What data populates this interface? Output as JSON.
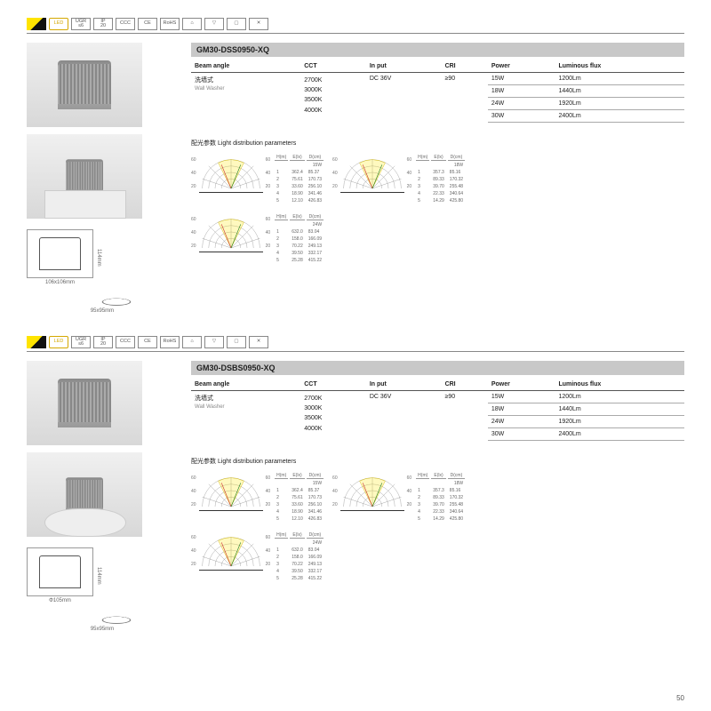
{
  "page_number": "50",
  "certs": [
    "LED",
    "UGR\n≤6",
    "IP\n20",
    "CCC",
    "CE",
    "RoHS",
    "⌂",
    "▽",
    "▢",
    "✕"
  ],
  "products": [
    {
      "model": "GM30-DSS0950-XQ",
      "shape": "sq",
      "dim_w": "106x106mm",
      "dim_h": "114mm",
      "cutout": "95x95mm",
      "beam_cn": "洗墙式",
      "beam_en": "Wall Washer",
      "cct": "2700K\n3000K\n3500K\n4000K",
      "input": "DC 36V",
      "cri": "≥90",
      "rows": [
        {
          "power": "15W",
          "lm": "1200Lm"
        },
        {
          "power": "18W",
          "lm": "1440Lm"
        },
        {
          "power": "24W",
          "lm": "1920Lm"
        },
        {
          "power": "30W",
          "lm": "2400Lm"
        }
      ],
      "ldp_label": "配光参数 Light distribution parameters",
      "polars": [
        {
          "w": "15W",
          "rows": [
            [
              "1",
              "362.4",
              "85.37"
            ],
            [
              "2",
              "75.61",
              "170.73"
            ],
            [
              "3",
              "33.60",
              "256.10"
            ],
            [
              "4",
              "18.90",
              "341.46"
            ],
            [
              "5",
              "12.10",
              "426.83"
            ]
          ]
        },
        {
          "w": "18W",
          "rows": [
            [
              "1",
              "357.3",
              "85.16"
            ],
            [
              "2",
              "89.33",
              "170.32"
            ],
            [
              "3",
              "39.70",
              "255.48"
            ],
            [
              "4",
              "22.33",
              "340.64"
            ],
            [
              "5",
              "14.29",
              "425.80"
            ]
          ]
        },
        {
          "w": "24W",
          "rows": [
            [
              "1",
              "632.0",
              "83.04"
            ],
            [
              "2",
              "158.0",
              "166.09"
            ],
            [
              "3",
              "70.22",
              "249.13"
            ],
            [
              "4",
              "39.50",
              "332.17"
            ],
            [
              "5",
              "25.28",
              "415.22"
            ]
          ]
        }
      ]
    },
    {
      "model": "GM30-DSBS0950-XQ",
      "shape": "rd",
      "dim_w": "Φ105mm",
      "dim_h": "114mm",
      "cutout": "95x95mm",
      "beam_cn": "洗墙式",
      "beam_en": "Wall Washer",
      "cct": "2700K\n3000K\n3500K\n4000K",
      "input": "DC 36V",
      "cri": "≥90",
      "rows": [
        {
          "power": "15W",
          "lm": "1200Lm"
        },
        {
          "power": "18W",
          "lm": "1440Lm"
        },
        {
          "power": "24W",
          "lm": "1920Lm"
        },
        {
          "power": "30W",
          "lm": "2400Lm"
        }
      ],
      "ldp_label": "配光参数 Light distribution parameters",
      "polars": [
        {
          "w": "15W",
          "rows": [
            [
              "1",
              "362.4",
              "85.37"
            ],
            [
              "2",
              "75.61",
              "170.73"
            ],
            [
              "3",
              "33.60",
              "256.10"
            ],
            [
              "4",
              "18.90",
              "341.46"
            ],
            [
              "5",
              "12.10",
              "426.83"
            ]
          ]
        },
        {
          "w": "18W",
          "rows": [
            [
              "1",
              "357.3",
              "85.16"
            ],
            [
              "2",
              "89.33",
              "170.32"
            ],
            [
              "3",
              "39.70",
              "255.48"
            ],
            [
              "4",
              "22.33",
              "340.64"
            ],
            [
              "5",
              "14.29",
              "425.80"
            ]
          ]
        },
        {
          "w": "24W",
          "rows": [
            [
              "1",
              "632.0",
              "83.04"
            ],
            [
              "2",
              "158.0",
              "166.09"
            ],
            [
              "3",
              "70.22",
              "249.13"
            ],
            [
              "4",
              "39.50",
              "332.17"
            ],
            [
              "5",
              "25.28",
              "415.22"
            ]
          ]
        }
      ]
    }
  ],
  "spec_headers": {
    "beam": "Beam angle",
    "cct": "CCT",
    "input": "In put",
    "cri": "CRI",
    "power": "Power",
    "lm": "Luminous flux"
  },
  "polar_headers": {
    "h": "H(m)",
    "e": "E(lx)",
    "d": "D(cm)"
  }
}
